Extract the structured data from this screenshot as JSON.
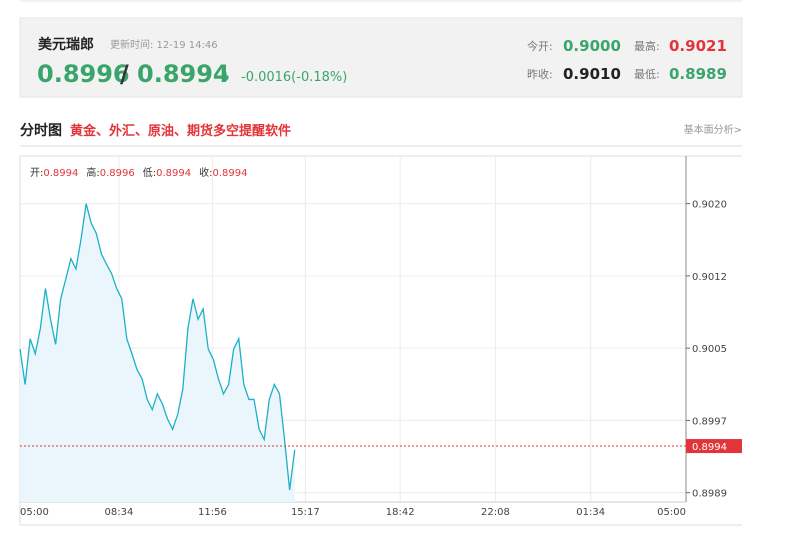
{
  "quote": {
    "name": "美元瑞郎",
    "update_time": "更新时间: 12-19 14:46",
    "bid": "0.8996",
    "separator": "/",
    "ask": "0.8994",
    "arrow": "↓",
    "change": "-0.0016(-0.18%)",
    "stats": [
      {
        "label": "今开:",
        "value": "0.9000",
        "color": "#3aa56b"
      },
      {
        "label": "最高:",
        "value": "0.9021",
        "color": "#e2353a"
      },
      {
        "label": "昨收:",
        "value": "0.9010",
        "color": "#222222"
      },
      {
        "label": "最低:",
        "value": "0.8989",
        "color": "#3aa56b"
      }
    ]
  },
  "section": {
    "title": "分时图",
    "promo": "黄金、外汇、原油、期货多空提醒软件",
    "link": "基本面分析>"
  },
  "chart_data": {
    "type": "line",
    "summary": [
      {
        "label": "开:",
        "value": 0.8994
      },
      {
        "label": "高:",
        "value": 0.8996
      },
      {
        "label": "低:",
        "value": 0.8994
      },
      {
        "label": "收:",
        "value": 0.8994
      }
    ],
    "x": [
      0,
      11,
      22,
      33,
      44,
      55,
      66,
      77,
      88,
      99,
      110,
      121,
      132,
      143,
      154,
      165,
      176,
      187,
      198,
      209,
      220,
      231,
      242,
      253,
      264,
      275,
      286,
      297,
      308,
      319,
      330,
      341,
      352,
      363,
      374,
      385,
      396,
      407,
      418,
      429,
      440,
      451,
      462,
      473,
      484,
      495,
      506,
      517,
      528,
      539,
      550,
      561,
      572,
      583,
      594
    ],
    "series": [
      {
        "color": "#1cb0c8",
        "fill": "#eaf6fb",
        "values": [
          0.90044,
          0.90006,
          0.90055,
          0.90039,
          0.90066,
          0.90109,
          0.90076,
          0.90049,
          0.90098,
          0.90119,
          0.90141,
          0.9013,
          0.90162,
          0.902,
          0.90179,
          0.90168,
          0.90146,
          0.90135,
          0.90125,
          0.90109,
          0.90098,
          0.90055,
          0.90039,
          0.90022,
          0.90012,
          0.8999,
          0.89979,
          0.89996,
          0.89985,
          0.89969,
          0.89958,
          0.89974,
          0.90001,
          0.90066,
          0.90098,
          0.90076,
          0.90087,
          0.90044,
          0.90033,
          0.90012,
          0.89996,
          0.90006,
          0.90044,
          0.90055,
          0.90006,
          0.8999,
          0.8999,
          0.89958,
          0.89947,
          0.8999,
          0.90006,
          0.89996,
          0.89947,
          0.89893,
          0.89936
        ]
      }
    ],
    "xlim": [
      0,
      1440
    ],
    "xticks": [
      {
        "value": 0,
        "label": "05:00"
      },
      {
        "value": 214,
        "label": "08:34"
      },
      {
        "value": 416,
        "label": "11:56"
      },
      {
        "value": 617,
        "label": "15:17"
      },
      {
        "value": 822,
        "label": "18:42"
      },
      {
        "value": 1028,
        "label": "22:08"
      },
      {
        "value": 1234,
        "label": "01:34"
      },
      {
        "value": 1440,
        "label": "05:00"
      }
    ],
    "ylim": [
      0.8988,
      0.9025
    ],
    "yticks": [
      {
        "value": 0.8989,
        "label": "0.8989"
      },
      {
        "value": 0.899675,
        "label": "0.8997"
      },
      {
        "value": 0.90045,
        "label": "0.9005"
      },
      {
        "value": 0.901225,
        "label": "0.9012"
      },
      {
        "value": 0.902,
        "label": "0.9020"
      }
    ],
    "grid": true,
    "ref_line": {
      "value": 0.8994,
      "color": "#e2353a"
    }
  }
}
